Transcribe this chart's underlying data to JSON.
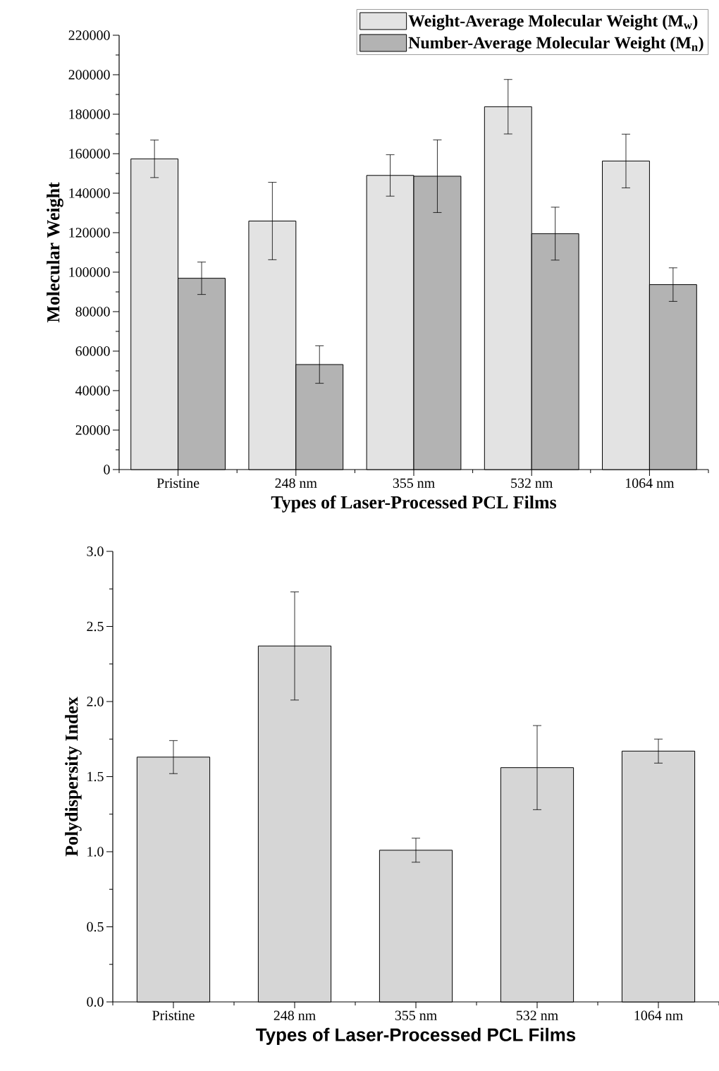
{
  "chart_data": [
    {
      "type": "bar",
      "xlabel": "Types of Laser-Processed PCL Films",
      "ylabel": "Molecular Weight",
      "categories": [
        "Pristine",
        "248 nm",
        "355 nm",
        "532 nm",
        "1064 nm"
      ],
      "series": [
        {
          "name": "Weight-Average Molecular Weight (M$_{w}$)",
          "color": "#e3e3e3",
          "values": [
            157400,
            125900,
            149000,
            183800,
            156300
          ],
          "errors": [
            9500,
            19600,
            10500,
            13800,
            13600
          ]
        },
        {
          "name": "Number-Average Molecular Weight (M$_{n}$)",
          "color": "#b3b3b3",
          "values": [
            96900,
            53200,
            148600,
            119500,
            93700
          ],
          "errors": [
            8200,
            9500,
            18400,
            13400,
            8500
          ]
        }
      ],
      "ylim": [
        0,
        220000
      ],
      "yticks": [
        0,
        20000,
        40000,
        60000,
        80000,
        100000,
        120000,
        140000,
        160000,
        180000,
        200000,
        220000
      ],
      "legend": "top right"
    },
    {
      "type": "bar",
      "xlabel": "Types of Laser-Processed PCL Films",
      "ylabel": "Polydispersity Index",
      "categories": [
        "Pristine",
        "248 nm",
        "355 nm",
        "532 nm",
        "1064 nm"
      ],
      "values": [
        1.63,
        2.37,
        1.01,
        1.56,
        1.67
      ],
      "errors": [
        0.11,
        0.36,
        0.08,
        0.28,
        0.08
      ],
      "color": "#d6d6d6",
      "ylim": [
        0,
        3
      ],
      "yticks": [
        {
          "value": 0,
          "label": "0.0"
        },
        {
          "value": 0.5,
          "label": "0.5"
        },
        {
          "value": 1,
          "label": "1.0"
        },
        {
          "value": 1.5,
          "label": "1.5"
        },
        {
          "value": 2,
          "label": "2.0"
        },
        {
          "value": 2.5,
          "label": "2.5"
        },
        {
          "value": 3,
          "label": "3.0"
        }
      ]
    }
  ]
}
